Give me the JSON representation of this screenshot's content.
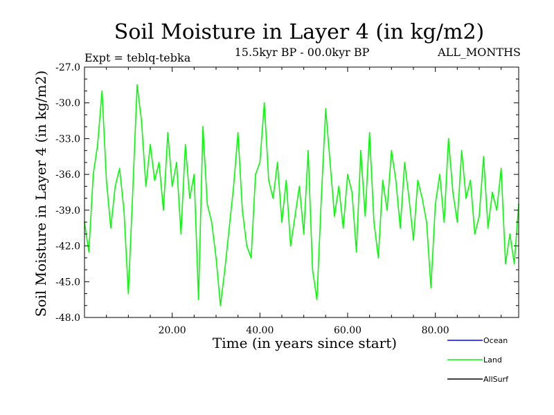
{
  "chart_data": {
    "type": "line",
    "title": "Soil Moisture in Layer 4 (in kg/m2)",
    "subtitle_left": "Expt = teblq-tebka",
    "subtitle_center": "15.5kyr BP - 00.0kyr BP",
    "subtitle_right": "ALL_MONTHS",
    "xlabel": "Time (in years since start)",
    "ylabel": "Soil Moisture in Layer 4 (in kg/m2)",
    "xlim": [
      0,
      99
    ],
    "ylim": [
      -48.0,
      -27.0
    ],
    "x_ticks": [
      20,
      40,
      60,
      80
    ],
    "x_tick_labels": [
      "20.00",
      "40.00",
      "60.00",
      "80.00"
    ],
    "y_ticks": [
      -27,
      -30,
      -33,
      -36,
      -39,
      -42,
      -45,
      -48
    ],
    "y_tick_labels": [
      "-27.0",
      "-30.0",
      "-33.0",
      "-36.0",
      "-39.0",
      "-42.0",
      "-45.0",
      "-48.0"
    ],
    "series": [
      {
        "name": "Land",
        "color": "#00ff00",
        "x": [
          0,
          1,
          2,
          3,
          4,
          5,
          6,
          7,
          8,
          9,
          10,
          11,
          12,
          13,
          14,
          15,
          16,
          17,
          18,
          19,
          20,
          21,
          22,
          23,
          24,
          25,
          26,
          27,
          28,
          29,
          30,
          31,
          32,
          33,
          34,
          35,
          36,
          37,
          38,
          39,
          40,
          41,
          42,
          43,
          44,
          45,
          46,
          47,
          48,
          49,
          50,
          51,
          52,
          53,
          54,
          55,
          56,
          57,
          58,
          59,
          60,
          61,
          62,
          63,
          64,
          65,
          66,
          67,
          68,
          69,
          70,
          71,
          72,
          73,
          74,
          75,
          76,
          77,
          78,
          79,
          80,
          81,
          82,
          83,
          84,
          85,
          86,
          87,
          88,
          89,
          90,
          91,
          92,
          93,
          94,
          95,
          96,
          97,
          98,
          99
        ],
        "values": [
          -40.0,
          -42.5,
          -36.0,
          -33.5,
          -29.0,
          -36.5,
          -40.5,
          -37.0,
          -35.5,
          -39.0,
          -46.0,
          -37.5,
          -28.5,
          -31.5,
          -37.0,
          -33.5,
          -36.5,
          -35.0,
          -39.0,
          -32.5,
          -37.0,
          -35.0,
          -41.0,
          -33.5,
          -38.0,
          -36.0,
          -46.5,
          -32.0,
          -38.5,
          -40.0,
          -43.0,
          -47.0,
          -44.0,
          -40.5,
          -37.0,
          -32.5,
          -39.0,
          -42.0,
          -43.0,
          -36.0,
          -35.0,
          -30.0,
          -36.5,
          -38.0,
          -35.0,
          -40.0,
          -36.5,
          -42.0,
          -39.5,
          -37.0,
          -41.0,
          -34.0,
          -44.0,
          -46.5,
          -38.0,
          -30.5,
          -35.0,
          -39.5,
          -37.0,
          -40.5,
          -36.0,
          -37.5,
          -42.5,
          -34.0,
          -39.5,
          -32.5,
          -40.0,
          -43.0,
          -36.5,
          -39.0,
          -34.0,
          -36.5,
          -40.5,
          -35.0,
          -38.0,
          -41.5,
          -36.5,
          -38.0,
          -40.0,
          -45.5,
          -38.5,
          -36.0,
          -40.0,
          -33.0,
          -37.5,
          -40.0,
          -34.0,
          -38.0,
          -36.5,
          -41.0,
          -39.5,
          -34.5,
          -40.5,
          -37.5,
          -39.0,
          -35.5,
          -43.5,
          -41.0,
          -43.5,
          -38.5
        ]
      }
    ],
    "legend": [
      {
        "label": "Ocean",
        "color": "#0000ff"
      },
      {
        "label": "Land",
        "color": "#00ff00"
      },
      {
        "label": "AllSurf",
        "color": "#000000"
      }
    ],
    "legend_position": "bottom-right",
    "grid": false
  }
}
